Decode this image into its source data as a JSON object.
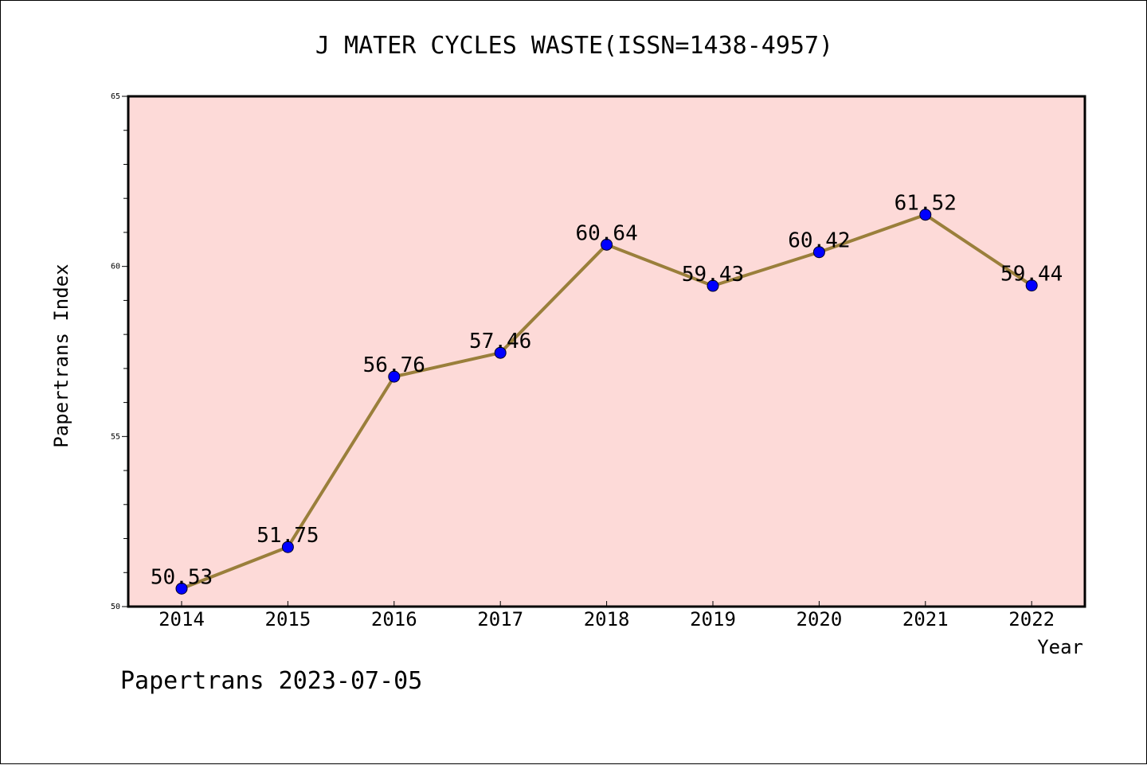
{
  "chart_data": {
    "type": "line",
    "title": "J MATER CYCLES WASTE(ISSN=1438-4957)",
    "xlabel": "Year",
    "ylabel": "Papertrans Index",
    "categories": [
      "2014",
      "2015",
      "2016",
      "2017",
      "2018",
      "2019",
      "2020",
      "2021",
      "2022"
    ],
    "values": [
      50.53,
      51.75,
      56.76,
      57.46,
      60.64,
      59.43,
      60.42,
      61.52,
      59.44
    ],
    "data_labels": [
      "50.53",
      "51.75",
      "56.76",
      "57.46",
      "60.64",
      "59.43",
      "60.42",
      "61.52",
      "59.44"
    ],
    "ylim": [
      50,
      65
    ],
    "yticks": [
      50,
      55,
      60,
      65
    ],
    "ytick_labels": [
      "50",
      "55",
      "60",
      "65"
    ],
    "y_minor_step": 1,
    "grid": false,
    "legend": "none",
    "colors": {
      "plot_background": "#fddad8",
      "line": "#9a7f3b",
      "marker": "#0000ff",
      "axis": "#000000"
    }
  },
  "footer": {
    "text": "Papertrans 2023-07-05"
  }
}
